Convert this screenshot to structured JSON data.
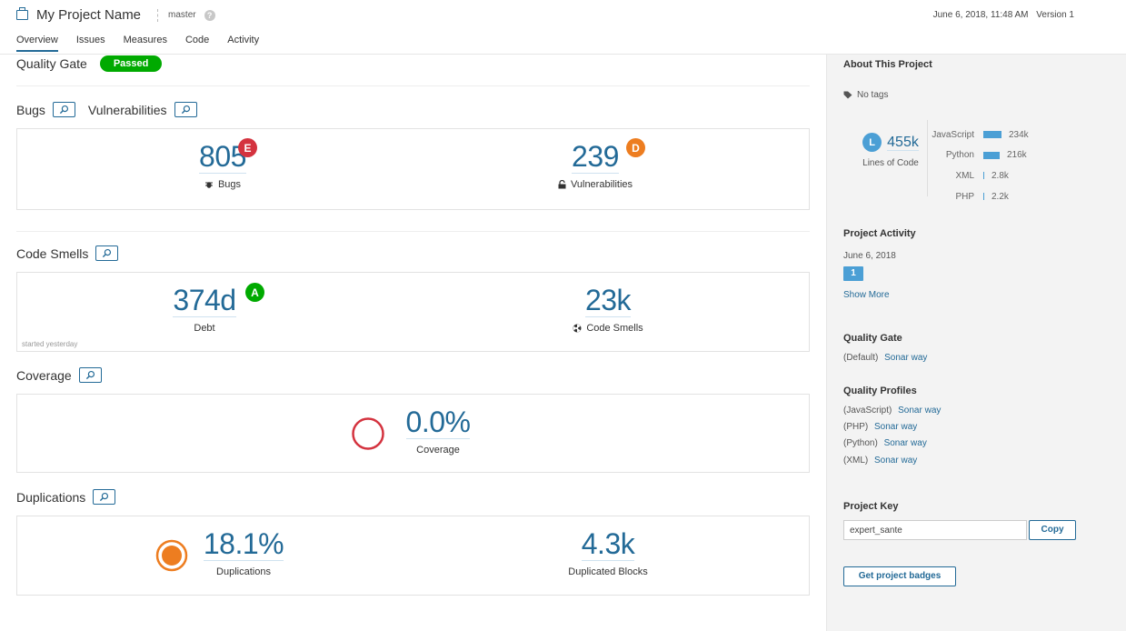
{
  "header": {
    "project_name": "My Project Name",
    "branch": "master",
    "help": "?",
    "date": "June 6, 2018, 11:48 AM",
    "version": "Version 1",
    "tabs": [
      {
        "label": "Overview"
      },
      {
        "label": "Issues"
      },
      {
        "label": "Measures"
      },
      {
        "label": "Code"
      },
      {
        "label": "Activity"
      }
    ]
  },
  "quality_gate": {
    "title": "Quality Gate",
    "status": "Passed"
  },
  "bugs_section": {
    "bugs_title": "Bugs",
    "vuln_title": "Vulnerabilities",
    "bugs_value": "805",
    "bugs_rating": "E",
    "bugs_label": "Bugs",
    "vuln_value": "239",
    "vuln_rating": "D",
    "vuln_label": "Vulnerabilities"
  },
  "code_smells": {
    "title": "Code Smells",
    "debt_value": "374d",
    "debt_rating": "A",
    "debt_label": "Debt",
    "smells_value": "23k",
    "smells_label": "Code Smells",
    "started_note": "started yesterday"
  },
  "coverage": {
    "title": "Coverage",
    "value": "0.0%",
    "label": "Coverage"
  },
  "duplications": {
    "title": "Duplications",
    "dup_value": "18.1%",
    "dup_label": "Duplications",
    "blocks_value": "4.3k",
    "blocks_label": "Duplicated Blocks"
  },
  "sidebar": {
    "about_title": "About This Project",
    "tags": "No tags",
    "loc_badge": "L",
    "loc_value": "455k",
    "loc_label": "Lines of Code",
    "languages": [
      {
        "name": "JavaScript",
        "value": "234k",
        "share": 0.514
      },
      {
        "name": "Python",
        "value": "216k",
        "share": 0.475
      },
      {
        "name": "XML",
        "value": "2.8k",
        "share": 0.006
      },
      {
        "name": "PHP",
        "value": "2.2k",
        "share": 0.005
      }
    ],
    "activity_title": "Project Activity",
    "activity_date": "June 6, 2018",
    "activity_count": "1",
    "show_more": "Show More",
    "qg_title": "Quality Gate",
    "qg_prefix": "(Default)",
    "qg_link": "Sonar way",
    "profiles_title": "Quality Profiles",
    "profiles": [
      {
        "lang": "(JavaScript)",
        "name": "Sonar way"
      },
      {
        "lang": "(PHP)",
        "name": "Sonar way"
      },
      {
        "lang": "(Python)",
        "name": "Sonar way"
      },
      {
        "lang": "(XML)",
        "name": "Sonar way"
      }
    ],
    "key_title": "Project Key",
    "key_value": "expert_sante",
    "copy_label": "Copy",
    "badges_label": "Get project badges"
  },
  "colors": {
    "accent": "#236a97",
    "passed": "#00aa00",
    "rating_e": "#d4333f",
    "rating_d": "#ed7d20",
    "rating_a": "#00aa00",
    "bar": "#4b9fd5"
  }
}
